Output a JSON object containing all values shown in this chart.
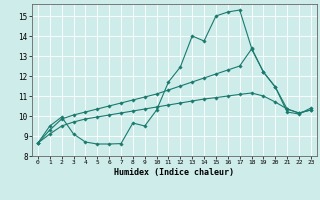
{
  "xlabel": "Humidex (Indice chaleur)",
  "bg_color": "#ceecea",
  "grid_color": "#ffffff",
  "line_color": "#1a7a6e",
  "xlim": [
    -0.5,
    23.5
  ],
  "ylim": [
    8,
    15.6
  ],
  "xticks": [
    0,
    1,
    2,
    3,
    4,
    5,
    6,
    7,
    8,
    9,
    10,
    11,
    12,
    13,
    14,
    15,
    16,
    17,
    18,
    19,
    20,
    21,
    22,
    23
  ],
  "yticks": [
    8,
    9,
    10,
    11,
    12,
    13,
    14,
    15
  ],
  "line1_x": [
    0,
    1,
    2,
    3,
    4,
    5,
    6,
    7,
    8,
    9,
    10,
    11,
    12,
    13,
    14,
    15,
    16,
    17,
    18,
    19,
    20,
    21,
    22,
    23
  ],
  "line1_y": [
    8.65,
    9.5,
    9.95,
    9.1,
    8.7,
    8.6,
    8.6,
    8.62,
    9.65,
    9.5,
    10.3,
    11.7,
    12.45,
    14.0,
    13.75,
    15.0,
    15.2,
    15.3,
    13.4,
    12.2,
    11.45,
    10.2,
    10.1,
    10.4
  ],
  "line2_x": [
    0,
    1,
    2,
    3,
    4,
    5,
    6,
    7,
    8,
    9,
    10,
    11,
    12,
    13,
    14,
    15,
    16,
    17,
    18,
    19,
    20,
    21,
    22,
    23
  ],
  "line2_y": [
    8.65,
    9.3,
    9.85,
    10.05,
    10.2,
    10.35,
    10.5,
    10.65,
    10.8,
    10.95,
    11.1,
    11.3,
    11.5,
    11.7,
    11.9,
    12.1,
    12.3,
    12.5,
    13.35,
    12.2,
    11.45,
    10.35,
    10.15,
    10.3
  ],
  "line3_x": [
    0,
    1,
    2,
    3,
    4,
    5,
    6,
    7,
    8,
    9,
    10,
    11,
    12,
    13,
    14,
    15,
    16,
    17,
    18,
    19,
    20,
    21,
    22,
    23
  ],
  "line3_y": [
    8.65,
    9.1,
    9.5,
    9.7,
    9.85,
    9.95,
    10.05,
    10.15,
    10.25,
    10.35,
    10.45,
    10.55,
    10.65,
    10.75,
    10.85,
    10.92,
    11.0,
    11.08,
    11.15,
    11.0,
    10.7,
    10.35,
    10.15,
    10.3
  ]
}
